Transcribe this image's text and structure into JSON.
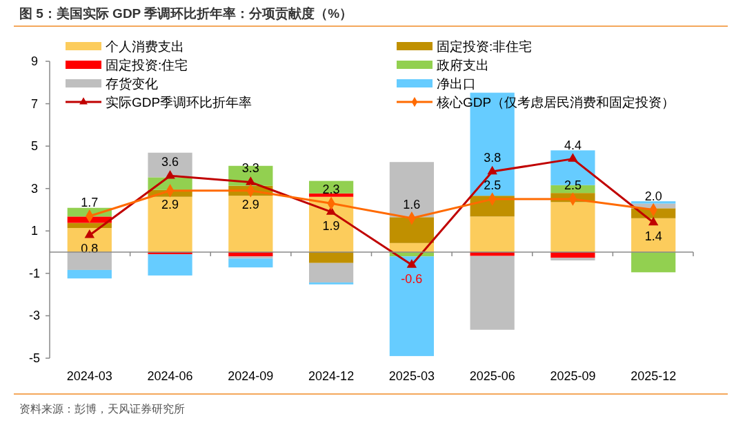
{
  "chart_data": {
    "type": "bar",
    "stacked": true,
    "title": "图 5：美国实际 GDP 季调环比折年率：分项贡献度（%）",
    "categories": [
      "2024-03",
      "2024-06",
      "2024-09",
      "2024-12",
      "2025-03",
      "2025-06",
      "2025-09",
      "2025-12"
    ],
    "series": [
      {
        "name": "个人消费支出",
        "color": "#fccc5c",
        "values": [
          1.14,
          2.61,
          2.66,
          2.61,
          0.43,
          1.68,
          2.36,
          1.6
        ]
      },
      {
        "name": "固定投资:非住宅",
        "color": "#c09000",
        "values": [
          0.24,
          0.32,
          0.47,
          -0.51,
          1.22,
          0.98,
          0.43,
          0.47
        ]
      },
      {
        "name": "固定投资:住宅",
        "color": "#ff0000",
        "values": [
          0.3,
          -0.1,
          -0.2,
          0.16,
          null,
          -0.18,
          -0.27,
          null
        ]
      },
      {
        "name": "政府支出",
        "color": "#92d050",
        "values": [
          0.41,
          0.6,
          0.94,
          0.59,
          -0.2,
          null,
          0.37,
          -0.95
        ]
      },
      {
        "name": "存货变化",
        "color": "#bfbfbf",
        "values": [
          -0.84,
          1.16,
          -0.1,
          -0.92,
          2.6,
          -3.48,
          -0.12,
          0.22
        ]
      },
      {
        "name": "净出口",
        "color": "#66ccff",
        "values": [
          -0.4,
          -1.0,
          -0.42,
          -0.09,
          -4.7,
          4.86,
          1.64,
          0.11
        ]
      },
      {
        "name": "实际GDP季调环比折年率",
        "type": "line",
        "color": "#c00000",
        "marker": "triangle",
        "values": [
          0.8,
          3.6,
          3.3,
          1.9,
          -0.6,
          3.8,
          4.4,
          1.4
        ],
        "value_labels": [
          "0.8",
          "3.6",
          "3.3",
          "1.9",
          "-0.6",
          "3.8",
          "4.4",
          "1.4"
        ]
      },
      {
        "name": "核心GDP（仅考虑居民消费和固定投资）",
        "type": "line",
        "color": "#ff6a00",
        "marker": "diamond",
        "values": [
          1.7,
          2.9,
          2.9,
          2.3,
          1.6,
          2.5,
          2.5,
          2.0
        ],
        "value_labels": [
          "1.7",
          "2.9",
          "2.9",
          "2.3",
          "1.6",
          "2.5",
          "2.5",
          "2.0"
        ]
      }
    ],
    "ylim": [
      -5,
      9
    ],
    "yticks": [
      -5,
      -3,
      -1,
      1,
      3,
      5,
      7,
      9
    ],
    "grid": false,
    "legend": "top",
    "annotations": [
      "资料来源：彭博，天风证券研究所"
    ]
  }
}
